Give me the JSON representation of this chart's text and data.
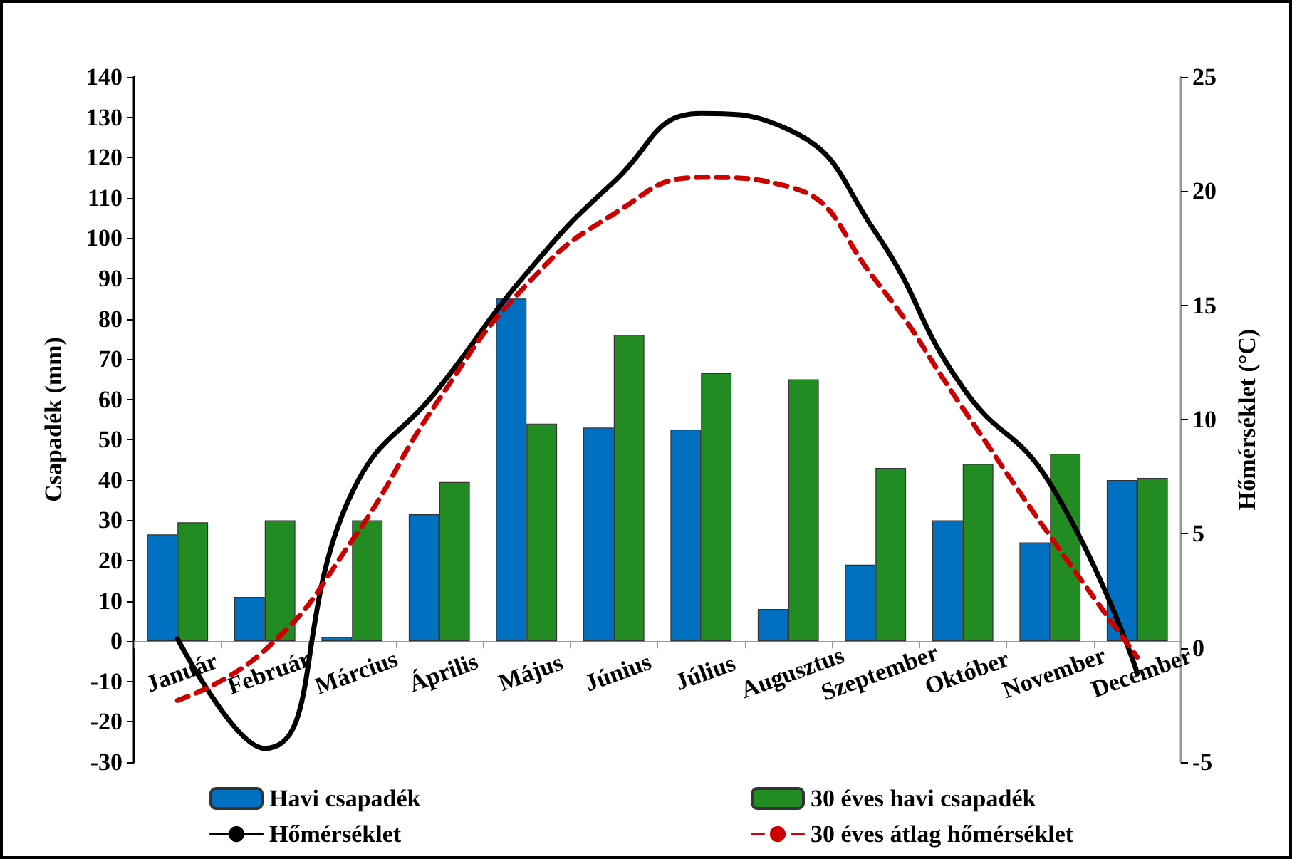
{
  "chart_data": {
    "type": "bar",
    "ylabel": "Csapadék (mm)",
    "y2label": "Hőmérséklet (°C)",
    "categories": [
      "Január",
      "Február",
      "Március",
      "Április",
      "Május",
      "Június",
      "Július",
      "Augusztus",
      "Szeptember",
      "Október",
      "November",
      "December"
    ],
    "series": [
      {
        "name": "Havi csapadék",
        "color": "#0070c0",
        "values": [
          26.5,
          11,
          1,
          31.5,
          85,
          53,
          52.5,
          8,
          19,
          30,
          24.5,
          40
        ]
      },
      {
        "name": "30 éves havi csapadék",
        "color": "#228b22",
        "values": [
          29.5,
          30,
          30,
          39.5,
          54,
          76,
          66.5,
          65,
          43,
          44,
          46.5,
          40.5
        ]
      },
      {
        "name": "Hőmérséklet",
        "type": "line",
        "axis": "y2",
        "color": "#000000",
        "line_style": "solid",
        "values": [
          0.4,
          -4.4,
          6.8,
          11.4,
          16.4,
          20.4,
          23.4,
          22.7,
          18.2,
          11.4,
          7.2,
          -1.1
        ]
      },
      {
        "name": "30 éves átlag hőmérséklet",
        "type": "line",
        "axis": "y2",
        "color": "#cc0000",
        "line_style": "dashed",
        "values": [
          -2.3,
          -0.1,
          4.7,
          10.9,
          15.9,
          19.0,
          20.6,
          20.2,
          16.1,
          10.5,
          4.9,
          -0.4
        ]
      }
    ],
    "ylim": [
      -30,
      140
    ],
    "yticks": [
      -30,
      -20,
      -10,
      0,
      10,
      20,
      30,
      40,
      50,
      60,
      70,
      80,
      90,
      100,
      110,
      120,
      130,
      140
    ],
    "y2lim": [
      -5,
      25
    ],
    "y2ticks": [
      -5,
      0,
      5,
      10,
      15,
      20,
      25
    ],
    "grid": false,
    "legend": "bottom",
    "marker": "none"
  }
}
